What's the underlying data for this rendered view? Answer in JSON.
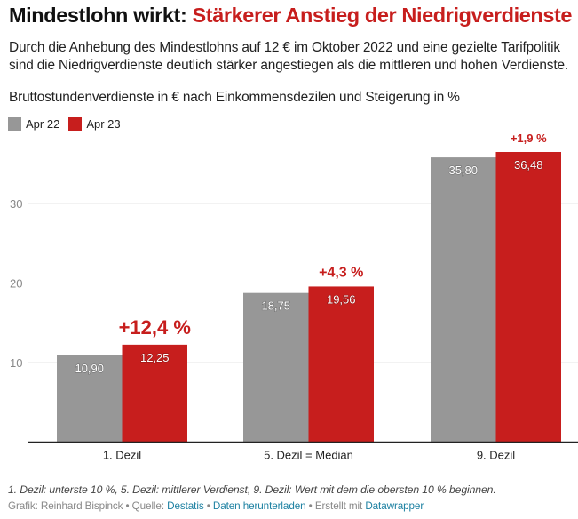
{
  "header": {
    "title_lead": "Mindestlohn wirkt: ",
    "title_accent": "Stärkerer Anstieg der Niedrigverdienste",
    "intro": "Durch die Anhebung des Mindestlohns auf 12 € im Oktober 2022 und eine gezielte Tarifpolitik sind die Niedrigverdienste deutlich stärker angestiegen als die mittleren und hohen Verdienste.",
    "subtitle": "Bruttostundenverdienste in € nach Einkommensdezilen und Steigerung in %"
  },
  "colors": {
    "accent": "#c71e1d",
    "apr22": "#979797",
    "apr23": "#c71e1d",
    "grid": "#e6e6e6",
    "axis": "#222222",
    "tick_label": "#888888",
    "link": "#1d81a2"
  },
  "legend": [
    {
      "label": "Apr 22",
      "color": "#979797"
    },
    {
      "label": "Apr 23",
      "color": "#c71e1d"
    }
  ],
  "chart_data": {
    "type": "bar",
    "title": "Bruttostundenverdienste in € nach Einkommensdezilen und Steigerung in %",
    "xlabel": "",
    "ylabel": "",
    "categories": [
      "1. Dezil",
      "5. Dezil = Median",
      "9. Dezil"
    ],
    "series": [
      {
        "name": "Apr 22",
        "values": [
          10.9,
          18.75,
          35.8
        ],
        "labels": [
          "10,90",
          "18,75",
          "35,80"
        ],
        "color": "#979797"
      },
      {
        "name": "Apr 23",
        "values": [
          12.25,
          19.56,
          36.48
        ],
        "labels": [
          "12,25",
          "19,56",
          "36,48"
        ],
        "color": "#c71e1d"
      }
    ],
    "annotations": [
      "+12,4 %",
      "+4,3 %",
      "+1,9 %"
    ],
    "yticks": [
      10,
      20,
      30
    ],
    "ytick_labels": [
      "10",
      "20",
      "30"
    ],
    "ylim": [
      0,
      36.48
    ],
    "grid": true,
    "legend_position": "top-left"
  },
  "footer": {
    "note": "1. Dezil: unterste 10 %, 5. Dezil: mittlerer Verdienst, 9. Dezil: Wert mit dem die obersten 10 % beginnen.",
    "credit_prefix": "Grafik: Reinhard Bispinck • Quelle: ",
    "source_link": "Destatis",
    "sep1": " • ",
    "download_link": "Daten herunterladen",
    "sep2": " • Erstellt mit ",
    "tool_link": "Datawrapper"
  }
}
